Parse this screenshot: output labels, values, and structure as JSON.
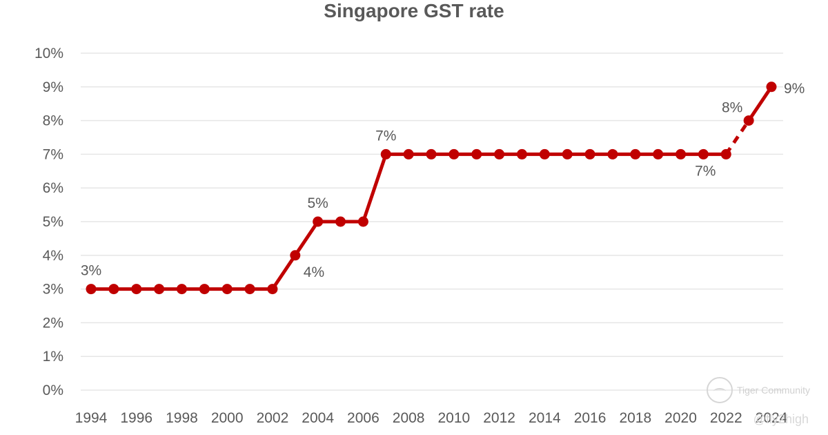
{
  "chart_data": {
    "type": "line",
    "title": "Singapore GST rate",
    "x": [
      1994,
      1995,
      1996,
      1997,
      1998,
      1999,
      2000,
      2001,
      2002,
      2003,
      2004,
      2005,
      2006,
      2007,
      2008,
      2009,
      2010,
      2011,
      2012,
      2013,
      2014,
      2015,
      2016,
      2017,
      2018,
      2019,
      2020,
      2021,
      2022,
      2023,
      2024
    ],
    "values": [
      3,
      3,
      3,
      3,
      3,
      3,
      3,
      3,
      3,
      4,
      5,
      5,
      5,
      7,
      7,
      7,
      7,
      7,
      7,
      7,
      7,
      7,
      7,
      7,
      7,
      7,
      7,
      7,
      7,
      8,
      9
    ],
    "x_tick_labels": [
      "1994",
      "1996",
      "1998",
      "2000",
      "2002",
      "2004",
      "2006",
      "2008",
      "2010",
      "2012",
      "2014",
      "2016",
      "2018",
      "2020",
      "2022",
      "2024"
    ],
    "y_tick_labels": [
      "0%",
      "1%",
      "2%",
      "3%",
      "4%",
      "5%",
      "6%",
      "7%",
      "8%",
      "9%",
      "10%"
    ],
    "ylim": [
      0,
      10
    ],
    "grid": true,
    "color": "#c00000",
    "dashed_segment": [
      2022,
      2023
    ],
    "data_labels": [
      {
        "x": 1994,
        "text": "3%",
        "pos": "above"
      },
      {
        "x": 2003,
        "text": "4%",
        "pos": "below-right"
      },
      {
        "x": 2004,
        "text": "5%",
        "pos": "above"
      },
      {
        "x": 2007,
        "text": "7%",
        "pos": "above"
      },
      {
        "x": 2022,
        "text": "7%",
        "pos": "below-left"
      },
      {
        "x": 2023,
        "text": "8%",
        "pos": "above-left"
      },
      {
        "x": 2024,
        "text": "9%",
        "pos": "right"
      }
    ]
  },
  "watermark": {
    "brand": "Tiger Community",
    "handle": "@fly2high"
  }
}
